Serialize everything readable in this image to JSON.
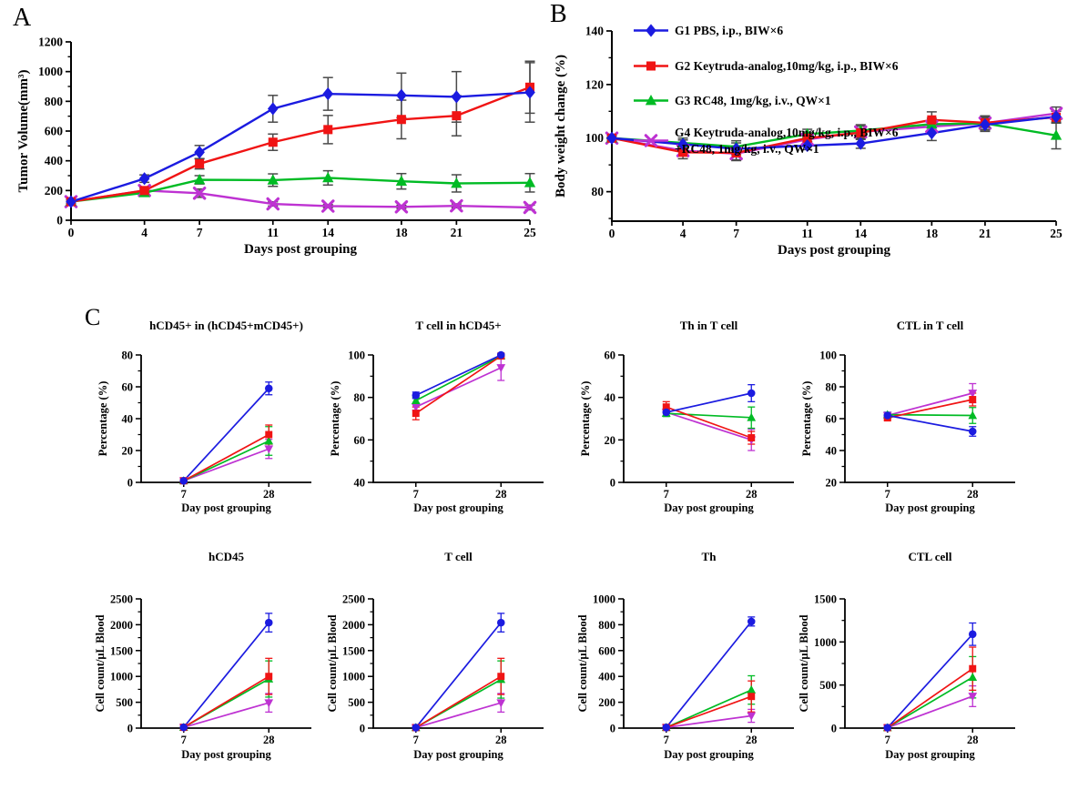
{
  "figure": {
    "panel_labels": {
      "a": "A",
      "b": "B",
      "c": "C"
    }
  },
  "groups": [
    {
      "id": "G1",
      "label": "G1 PBS, i.p., BIW×6",
      "color": "#1b1be0",
      "marker_ab": "diamond",
      "marker_c": "circle"
    },
    {
      "id": "G2",
      "label": "G2 Keytruda-analog,10mg/kg, i.p., BIW×6",
      "color": "#f01414",
      "marker_ab": "square",
      "marker_c": "square"
    },
    {
      "id": "G3",
      "label": "G3 RC48, 1mg/kg, i.v., QW×1",
      "color": "#00bb24",
      "marker_ab": "triangle-up",
      "marker_c": "triangle-up"
    },
    {
      "id": "G4",
      "label": "G4 Keytruda-analog,10mg/kg, i.p., BIW×6 +RC48, 1mg/kg, i.v., QW×1",
      "color": "#be32d2",
      "marker_ab": "x",
      "marker_c": "triangle-down"
    }
  ],
  "legend": {
    "entries": [
      {
        "group": "G1",
        "lines": [
          "G1 PBS, i.p., BIW×6"
        ]
      },
      {
        "group": "G2",
        "lines": [
          "G2 Keytruda-analog,10mg/kg, i.p., BIW×6"
        ]
      },
      {
        "group": "G3",
        "lines": [
          "G3 RC48, 1mg/kg, i.v., QW×1"
        ]
      },
      {
        "group": "G4",
        "lines": [
          "G4 Keytruda-analog,10mg/kg, i.p., BIW×6",
          "+RC48, 1mg/kg, i.v., QW×1"
        ]
      }
    ]
  },
  "chart_data": [
    {
      "id": "A",
      "type": "line",
      "title": "",
      "xlabel": "Days post grouping",
      "ylabel": "Tumor Volume(mm³)",
      "x": [
        0,
        4,
        7,
        11,
        14,
        18,
        21,
        25
      ],
      "xlim": [
        0,
        25
      ],
      "ylim": [
        0,
        1200
      ],
      "yticks": [
        0,
        200,
        400,
        600,
        800,
        1000,
        1200
      ],
      "y_minor": 100,
      "series": [
        {
          "group": "G1",
          "values": [
            125,
            280,
            458,
            750,
            850,
            840,
            830,
            860
          ],
          "errors": [
            15,
            25,
            45,
            90,
            110,
            150,
            170,
            200
          ]
        },
        {
          "group": "G2",
          "values": [
            125,
            200,
            380,
            525,
            610,
            678,
            703,
            895
          ],
          "errors": [
            15,
            20,
            35,
            55,
            95,
            130,
            135,
            175
          ]
        },
        {
          "group": "G3",
          "values": [
            125,
            185,
            272,
            270,
            285,
            262,
            248,
            252
          ],
          "errors": [
            12,
            18,
            28,
            42,
            48,
            52,
            58,
            62
          ]
        },
        {
          "group": "G4",
          "values": [
            125,
            200,
            182,
            110,
            95,
            90,
            97,
            86
          ],
          "errors": [
            10,
            15,
            28,
            14,
            10,
            10,
            13,
            16
          ]
        }
      ]
    },
    {
      "id": "B",
      "type": "line",
      "title": "",
      "xlabel": "Days post grouping",
      "ylabel": "Body weight change (%)",
      "x": [
        0,
        4,
        7,
        11,
        14,
        18,
        21,
        25
      ],
      "xlim": [
        0,
        25
      ],
      "ylim": [
        69,
        140
      ],
      "yticks": [
        80,
        100,
        120,
        140
      ],
      "y_minor": 10,
      "show_legend": true,
      "series": [
        {
          "group": "G1",
          "values": [
            100,
            97.7,
            96,
            97.2,
            98,
            101.9,
            105,
            108
          ],
          "errors": [
            0.8,
            1.6,
            2.2,
            1.5,
            1.8,
            2.8,
            2.5,
            2.2
          ]
        },
        {
          "group": "G2",
          "values": [
            100,
            94.7,
            94.5,
            100,
            102,
            106.8,
            105.7,
            107.8
          ],
          "errors": [
            0.8,
            2.4,
            2.6,
            2,
            2.5,
            3,
            2.6,
            2.2
          ]
        },
        {
          "group": "G3",
          "values": [
            100,
            98.2,
            96.8,
            101.5,
            102.8,
            105.2,
            105.5,
            101
          ],
          "errors": [
            0.8,
            1.8,
            2.2,
            1.8,
            2.2,
            2.2,
            2.3,
            5
          ]
        },
        {
          "group": "G4",
          "values": [
            100,
            95.3,
            94.2,
            99.5,
            102.3,
            104.3,
            105.6,
            109.2
          ],
          "errors": [
            0.8,
            1.8,
            2.6,
            1.8,
            2.2,
            2.4,
            2.6,
            2.4
          ]
        }
      ]
    },
    {
      "id": "C1",
      "type": "line",
      "title": "hCD45+ in (hCD45+mCD45+)",
      "xlabel": "Day post grouping",
      "ylabel": "Percentage (%)",
      "categories": [
        "7",
        "28"
      ],
      "cat_pos": [
        0.25,
        0.75
      ],
      "ylim": [
        0,
        80
      ],
      "yticks": [
        0,
        20,
        40,
        60,
        80
      ],
      "y_minor": 10,
      "series": [
        {
          "group": "G1",
          "values": [
            1,
            59
          ],
          "errors": [
            0.5,
            4
          ]
        },
        {
          "group": "G2",
          "values": [
            1,
            30
          ],
          "errors": [
            0.5,
            6
          ]
        },
        {
          "group": "G3",
          "values": [
            1,
            26
          ],
          "errors": [
            0.5,
            9
          ]
        },
        {
          "group": "G4",
          "values": [
            1,
            21
          ],
          "errors": [
            0.5,
            6
          ]
        }
      ]
    },
    {
      "id": "C2",
      "type": "line",
      "title": "T cell in hCD45+",
      "xlabel": "Day post grouping",
      "ylabel": "Percentage (%)",
      "categories": [
        "7",
        "28"
      ],
      "cat_pos": [
        0.25,
        0.75
      ],
      "ylim": [
        40,
        100
      ],
      "yticks": [
        40,
        60,
        80,
        100
      ],
      "y_minor": 10,
      "series": [
        {
          "group": "G1",
          "values": [
            81,
            100
          ],
          "errors": [
            1.5,
            0.5
          ]
        },
        {
          "group": "G2",
          "values": [
            72.5,
            99.5
          ],
          "errors": [
            3,
            0.5
          ]
        },
        {
          "group": "G3",
          "values": [
            78.5,
            99.5
          ],
          "errors": [
            1.5,
            0.5
          ]
        },
        {
          "group": "G4",
          "values": [
            75.5,
            94
          ],
          "errors": [
            1.5,
            6
          ]
        }
      ]
    },
    {
      "id": "C3",
      "type": "line",
      "title": "Th in T cell",
      "xlabel": "Day post grouping",
      "ylabel": "Percentage (%)",
      "categories": [
        "7",
        "28"
      ],
      "cat_pos": [
        0.25,
        0.75
      ],
      "ylim": [
        0,
        60
      ],
      "yticks": [
        0,
        20,
        40,
        60
      ],
      "y_minor": 10,
      "series": [
        {
          "group": "G1",
          "values": [
            33,
            42
          ],
          "errors": [
            1.5,
            4
          ]
        },
        {
          "group": "G2",
          "values": [
            35.5,
            21
          ],
          "errors": [
            2.5,
            3
          ]
        },
        {
          "group": "G3",
          "values": [
            32.5,
            30.5
          ],
          "errors": [
            1.5,
            5
          ]
        },
        {
          "group": "G4",
          "values": [
            33,
            20
          ],
          "errors": [
            1.5,
            5
          ]
        }
      ]
    },
    {
      "id": "C4",
      "type": "line",
      "title": "CTL in T cell",
      "xlabel": "Day post grouping",
      "ylabel": "Percentage (%)",
      "categories": [
        "7",
        "28"
      ],
      "cat_pos": [
        0.25,
        0.75
      ],
      "ylim": [
        20,
        100
      ],
      "yticks": [
        20,
        40,
        60,
        80,
        100
      ],
      "y_minor": 10,
      "series": [
        {
          "group": "G1",
          "values": [
            62,
            52
          ],
          "errors": [
            2,
            3
          ]
        },
        {
          "group": "G2",
          "values": [
            60.5,
            72
          ],
          "errors": [
            1.5,
            4
          ]
        },
        {
          "group": "G3",
          "values": [
            62.5,
            62
          ],
          "errors": [
            1.5,
            5
          ]
        },
        {
          "group": "G4",
          "values": [
            62,
            76
          ],
          "errors": [
            1.5,
            6
          ]
        }
      ]
    },
    {
      "id": "C5",
      "type": "line",
      "title": "hCD45",
      "xlabel": "Day post grouping",
      "ylabel": "Cell count/μL Blood",
      "categories": [
        "7",
        "28"
      ],
      "cat_pos": [
        0.25,
        0.75
      ],
      "ylim": [
        0,
        2500
      ],
      "yticks": [
        0,
        500,
        1000,
        1500,
        2000,
        2500
      ],
      "y_minor": 250,
      "series": [
        {
          "group": "G1",
          "values": [
            15,
            2040
          ],
          "errors": [
            5,
            180
          ]
        },
        {
          "group": "G2",
          "values": [
            15,
            1000
          ],
          "errors": [
            5,
            350
          ]
        },
        {
          "group": "G3",
          "values": [
            15,
            950
          ],
          "errors": [
            5,
            350
          ]
        },
        {
          "group": "G4",
          "values": [
            15,
            490
          ],
          "errors": [
            5,
            180
          ]
        }
      ]
    },
    {
      "id": "C6",
      "type": "line",
      "title": "T cell",
      "xlabel": "Day post grouping",
      "ylabel": "Cell count/μL Blood",
      "categories": [
        "7",
        "28"
      ],
      "cat_pos": [
        0.25,
        0.75
      ],
      "ylim": [
        0,
        2500
      ],
      "yticks": [
        0,
        500,
        1000,
        1500,
        2000,
        2500
      ],
      "y_minor": 250,
      "series": [
        {
          "group": "G1",
          "values": [
            10,
            2040
          ],
          "errors": [
            5,
            180
          ]
        },
        {
          "group": "G2",
          "values": [
            10,
            1000
          ],
          "errors": [
            5,
            350
          ]
        },
        {
          "group": "G3",
          "values": [
            10,
            940
          ],
          "errors": [
            5,
            360
          ]
        },
        {
          "group": "G4",
          "values": [
            10,
            490
          ],
          "errors": [
            5,
            180
          ]
        }
      ]
    },
    {
      "id": "C7",
      "type": "line",
      "title": "Th",
      "xlabel": "Day post grouping",
      "ylabel": "Cell count/μL Blood",
      "categories": [
        "7",
        "28"
      ],
      "cat_pos": [
        0.25,
        0.75
      ],
      "ylim": [
        0,
        1000
      ],
      "yticks": [
        0,
        200,
        400,
        600,
        800,
        1000
      ],
      "y_minor": 100,
      "series": [
        {
          "group": "G1",
          "values": [
            5,
            825
          ],
          "errors": [
            3,
            35
          ]
        },
        {
          "group": "G2",
          "values": [
            5,
            245
          ],
          "errors": [
            3,
            120
          ]
        },
        {
          "group": "G3",
          "values": [
            5,
            295
          ],
          "errors": [
            3,
            110
          ]
        },
        {
          "group": "G4",
          "values": [
            5,
            95
          ],
          "errors": [
            3,
            50
          ]
        }
      ]
    },
    {
      "id": "C8",
      "type": "line",
      "title": "CTL cell",
      "xlabel": "Day post grouping",
      "ylabel": "Cell count/μL Blood",
      "categories": [
        "7",
        "28"
      ],
      "cat_pos": [
        0.25,
        0.75
      ],
      "ylim": [
        0,
        1500
      ],
      "yticks": [
        0,
        500,
        1000,
        1500
      ],
      "y_minor": 250,
      "series": [
        {
          "group": "G1",
          "values": [
            5,
            1090
          ],
          "errors": [
            3,
            130
          ]
        },
        {
          "group": "G2",
          "values": [
            5,
            690
          ],
          "errors": [
            3,
            250
          ]
        },
        {
          "group": "G3",
          "values": [
            5,
            590
          ],
          "errors": [
            3,
            240
          ]
        },
        {
          "group": "G4",
          "values": [
            5,
            370
          ],
          "errors": [
            3,
            120
          ]
        }
      ]
    }
  ]
}
